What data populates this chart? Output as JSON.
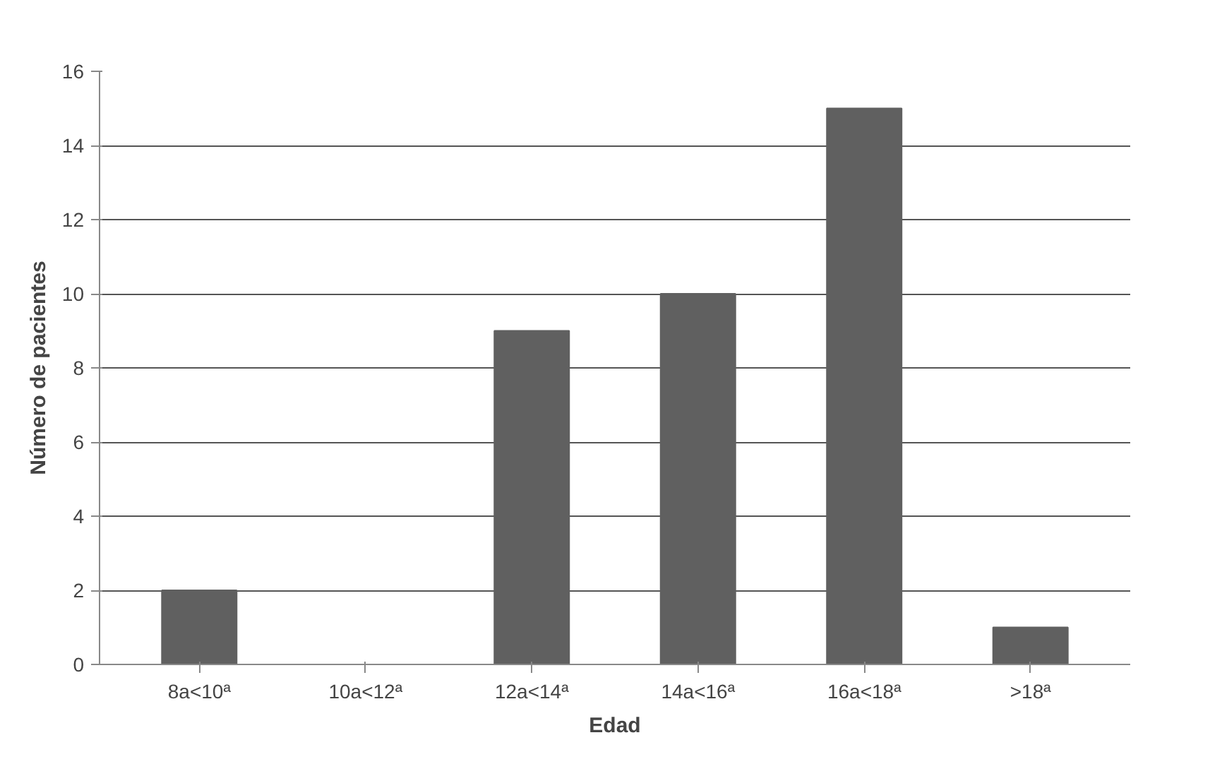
{
  "chart_data": {
    "type": "bar",
    "xlabel": "Edad",
    "ylabel": "Número de pacientes",
    "categories": [
      "8a<10ª",
      "10a<12ª",
      "12a<14ª",
      "14a<16ª",
      "16a<18ª",
      ">18ª"
    ],
    "values": [
      2,
      0,
      9,
      10,
      15,
      1
    ],
    "color": "#606060",
    "ylim": [
      0,
      16
    ],
    "yticks": [
      0,
      2,
      4,
      6,
      8,
      10,
      12,
      14,
      16
    ],
    "grid": "y"
  }
}
